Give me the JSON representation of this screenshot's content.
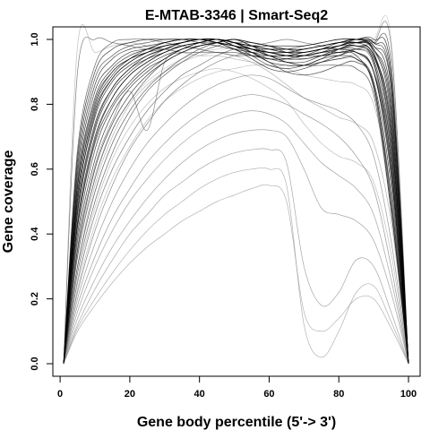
{
  "chart_data": {
    "type": "line",
    "title": "E-MTAB-3346 | Smart-Seq2",
    "xlabel": "Gene body percentile (5'-> 3')",
    "ylabel": "Gene coverage",
    "xlim": [
      0,
      100
    ],
    "ylim": [
      0,
      1.0
    ],
    "xticks": [
      0,
      20,
      40,
      60,
      80,
      100
    ],
    "yticks": [
      0.0,
      0.2,
      0.4,
      0.6,
      0.8,
      1.0
    ],
    "xtick_labels": [
      "0",
      "20",
      "40",
      "60",
      "80",
      "100"
    ],
    "ytick_labels": [
      "0.0",
      "0.2",
      "0.4",
      "0.6",
      "0.8",
      "1.0"
    ],
    "grid": false,
    "legend": "none",
    "x": [
      1,
      5,
      10,
      15,
      20,
      25,
      30,
      35,
      40,
      45,
      50,
      55,
      60,
      65,
      70,
      75,
      80,
      85,
      90,
      95,
      100
    ],
    "series": [
      {
        "color": "#000000",
        "values": [
          0.0,
          0.52,
          0.78,
          0.88,
          0.93,
          0.96,
          0.98,
          0.99,
          1.0,
          1.0,
          0.99,
          0.97,
          0.96,
          0.96,
          0.96,
          0.97,
          0.98,
          0.99,
          0.96,
          0.72,
          0.0
        ]
      },
      {
        "color": "#000000",
        "values": [
          0.0,
          0.46,
          0.72,
          0.84,
          0.9,
          0.94,
          0.97,
          0.99,
          1.0,
          0.99,
          0.98,
          0.96,
          0.94,
          0.93,
          0.93,
          0.95,
          0.97,
          0.98,
          0.93,
          0.62,
          0.0
        ]
      },
      {
        "color": "#000000",
        "values": [
          0.0,
          0.56,
          0.82,
          0.91,
          0.95,
          0.97,
          0.99,
          1.0,
          1.0,
          1.0,
          0.99,
          0.98,
          0.97,
          0.97,
          0.97,
          0.98,
          0.99,
          0.99,
          0.97,
          0.78,
          0.0
        ]
      },
      {
        "color": "#000000",
        "values": [
          0.0,
          0.42,
          0.68,
          0.8,
          0.87,
          0.92,
          0.95,
          0.97,
          0.99,
          1.0,
          0.99,
          0.97,
          0.95,
          0.94,
          0.94,
          0.95,
          0.96,
          0.96,
          0.9,
          0.58,
          0.0
        ]
      },
      {
        "color": "#000000",
        "values": [
          0.0,
          0.5,
          0.76,
          0.87,
          0.92,
          0.95,
          0.97,
          0.99,
          1.0,
          1.0,
          0.98,
          0.95,
          0.92,
          0.91,
          0.92,
          0.94,
          0.97,
          0.99,
          0.98,
          0.82,
          0.0
        ]
      },
      {
        "color": "#000000",
        "values": [
          0.0,
          0.38,
          0.63,
          0.77,
          0.85,
          0.9,
          0.94,
          0.97,
          0.99,
          1.0,
          0.99,
          0.97,
          0.95,
          0.93,
          0.92,
          0.93,
          0.94,
          0.94,
          0.87,
          0.55,
          0.0
        ]
      },
      {
        "color": "#000000",
        "values": [
          0.0,
          0.6,
          0.86,
          0.94,
          0.97,
          0.98,
          0.99,
          1.0,
          1.0,
          0.99,
          0.98,
          0.97,
          0.96,
          0.95,
          0.95,
          0.96,
          0.97,
          0.98,
          0.95,
          0.7,
          0.0
        ]
      },
      {
        "color": "#000000",
        "values": [
          0.0,
          0.48,
          0.74,
          0.85,
          0.91,
          0.94,
          0.96,
          0.98,
          0.99,
          1.0,
          0.99,
          0.98,
          0.97,
          0.96,
          0.96,
          0.97,
          0.98,
          1.0,
          0.99,
          0.88,
          0.0
        ]
      },
      {
        "color": "#000000",
        "values": [
          0.0,
          0.44,
          0.7,
          0.82,
          0.89,
          0.93,
          0.96,
          0.98,
          0.99,
          1.0,
          0.98,
          0.96,
          0.93,
          0.9,
          0.89,
          0.9,
          0.92,
          0.93,
          0.86,
          0.5,
          0.0
        ]
      },
      {
        "color": "#000000",
        "values": [
          0.0,
          0.54,
          0.8,
          0.9,
          0.94,
          0.96,
          0.98,
          0.99,
          1.0,
          1.0,
          0.99,
          0.98,
          0.98,
          0.98,
          0.98,
          0.99,
          1.0,
          1.0,
          0.98,
          0.85,
          0.0
        ]
      },
      {
        "color": "#000000",
        "values": [
          0.0,
          0.35,
          0.6,
          0.74,
          0.83,
          0.89,
          0.93,
          0.96,
          0.98,
          0.99,
          1.0,
          0.98,
          0.96,
          0.95,
          0.95,
          0.96,
          0.96,
          0.95,
          0.85,
          0.48,
          0.0
        ]
      },
      {
        "color": "#000000",
        "values": [
          0.0,
          0.64,
          0.9,
          0.97,
          0.99,
          1.0,
          1.0,
          1.0,
          0.99,
          0.98,
          0.97,
          0.96,
          0.95,
          0.95,
          0.96,
          0.97,
          0.98,
          0.99,
          0.97,
          0.76,
          0.0
        ]
      },
      {
        "color": "#000000",
        "values": [
          0.0,
          0.4,
          0.66,
          0.79,
          0.86,
          0.91,
          0.94,
          0.97,
          0.98,
          0.99,
          1.0,
          0.99,
          0.98,
          0.97,
          0.97,
          0.98,
          0.99,
          1.0,
          0.97,
          0.8,
          0.0
        ]
      },
      {
        "color": "#000000",
        "values": [
          0.0,
          0.58,
          0.84,
          0.92,
          0.96,
          0.97,
          0.98,
          0.99,
          1.0,
          0.99,
          0.97,
          0.94,
          0.91,
          0.9,
          0.91,
          0.93,
          0.95,
          0.97,
          0.94,
          0.66,
          0.0
        ]
      },
      {
        "color": "#000000",
        "values": [
          0.0,
          0.47,
          0.73,
          0.85,
          0.91,
          0.95,
          0.97,
          0.99,
          1.0,
          1.0,
          0.99,
          0.97,
          0.96,
          0.95,
          0.95,
          0.96,
          0.98,
          0.99,
          0.95,
          0.74,
          0.0
        ]
      },
      {
        "color": "#000000",
        "values": [
          0.0,
          0.52,
          0.79,
          0.89,
          0.94,
          0.97,
          0.99,
          1.0,
          1.0,
          0.99,
          0.97,
          0.95,
          0.94,
          0.94,
          0.95,
          0.97,
          0.99,
          1.0,
          1.0,
          0.9,
          0.0
        ]
      },
      {
        "color": "#000000",
        "values": [
          0.0,
          0.43,
          0.69,
          0.82,
          0.89,
          0.93,
          0.96,
          0.98,
          0.99,
          1.0,
          0.99,
          0.96,
          0.93,
          0.92,
          0.92,
          0.94,
          0.95,
          0.96,
          0.9,
          0.6,
          0.0
        ]
      },
      {
        "color": "#000000",
        "values": [
          0.0,
          0.5,
          0.77,
          0.88,
          0.93,
          0.96,
          0.98,
          0.99,
          1.0,
          1.0,
          0.99,
          0.98,
          0.97,
          0.96,
          0.97,
          0.98,
          0.99,
          0.99,
          0.96,
          0.68,
          0.0
        ]
      },
      {
        "color": "#1e1e1e",
        "values": [
          0.0,
          0.33,
          0.57,
          0.72,
          0.81,
          0.88,
          0.93,
          0.96,
          0.98,
          0.99,
          1.0,
          0.99,
          0.98,
          0.96,
          0.95,
          0.95,
          0.95,
          0.94,
          0.86,
          0.52,
          0.0
        ]
      },
      {
        "color": "#1e1e1e",
        "values": [
          0.0,
          0.62,
          0.88,
          0.95,
          0.98,
          0.99,
          1.0,
          1.0,
          1.0,
          0.99,
          0.98,
          0.97,
          0.97,
          0.97,
          0.98,
          0.99,
          1.0,
          1.0,
          0.99,
          0.86,
          0.0
        ]
      },
      {
        "color": "#2a2a2a",
        "values": [
          0.0,
          0.3,
          0.53,
          0.68,
          0.78,
          0.85,
          0.9,
          0.94,
          0.97,
          0.99,
          1.0,
          0.98,
          0.95,
          0.93,
          0.92,
          0.92,
          0.92,
          0.91,
          0.83,
          0.47,
          0.0
        ]
      },
      {
        "color": "#2a2a2a",
        "values": [
          0.0,
          0.55,
          0.81,
          0.9,
          0.94,
          0.96,
          0.97,
          0.98,
          0.99,
          0.99,
          0.98,
          0.97,
          0.96,
          0.96,
          0.97,
          0.98,
          0.99,
          1.0,
          0.99,
          0.93,
          0.0
        ]
      },
      {
        "color": "#3a3a3a",
        "values": [
          0.0,
          0.28,
          0.5,
          0.65,
          0.76,
          0.84,
          0.89,
          0.93,
          0.96,
          0.98,
          0.99,
          0.99,
          0.98,
          0.97,
          0.96,
          0.97,
          0.97,
          0.96,
          0.9,
          0.63,
          0.0
        ]
      },
      {
        "color": "#3a3a3a",
        "values": [
          0.0,
          0.66,
          0.92,
          0.99,
          1.0,
          1.0,
          0.99,
          0.98,
          0.97,
          0.96,
          0.96,
          0.95,
          0.95,
          0.95,
          0.96,
          0.97,
          0.98,
          0.98,
          0.95,
          0.72,
          0.0
        ]
      },
      {
        "color": "#555555",
        "values": [
          0.0,
          0.25,
          0.46,
          0.6,
          0.7,
          0.78,
          0.84,
          0.89,
          0.92,
          0.95,
          0.97,
          0.98,
          0.99,
          1.0,
          0.99,
          0.98,
          0.97,
          0.96,
          0.9,
          0.66,
          0.0
        ]
      },
      {
        "color": "#555555",
        "values": [
          0.0,
          0.9,
          1.0,
          0.99,
          0.98,
          0.97,
          0.97,
          0.96,
          0.96,
          0.96,
          0.95,
          0.95,
          0.94,
          0.94,
          0.95,
          0.96,
          0.97,
          0.97,
          0.93,
          0.64,
          0.0
        ]
      },
      {
        "color": "#666666",
        "values": [
          0.0,
          0.22,
          0.41,
          0.55,
          0.66,
          0.74,
          0.81,
          0.86,
          0.9,
          0.93,
          0.95,
          0.96,
          0.96,
          0.95,
          0.94,
          0.95,
          0.96,
          0.97,
          0.99,
          0.98,
          0.0
        ]
      },
      {
        "color": "#666666",
        "values": [
          0.0,
          0.36,
          0.61,
          0.75,
          0.84,
          0.72,
          0.93,
          0.96,
          0.98,
          0.99,
          0.98,
          0.97,
          0.96,
          0.95,
          0.95,
          0.96,
          0.97,
          0.97,
          0.92,
          0.6,
          0.0
        ]
      },
      {
        "color": "#777777",
        "values": [
          0.0,
          0.2,
          0.37,
          0.5,
          0.6,
          0.68,
          0.74,
          0.79,
          0.83,
          0.86,
          0.88,
          0.89,
          0.88,
          0.85,
          0.82,
          0.8,
          0.78,
          0.74,
          0.64,
          0.38,
          0.0
        ]
      },
      {
        "color": "#777777",
        "values": [
          0.0,
          0.18,
          0.33,
          0.45,
          0.54,
          0.62,
          0.68,
          0.73,
          0.77,
          0.8,
          0.82,
          0.83,
          0.82,
          0.8,
          0.77,
          0.74,
          0.7,
          0.64,
          0.54,
          0.3,
          0.0
        ]
      },
      {
        "color": "#888888",
        "values": [
          0.0,
          0.16,
          0.3,
          0.41,
          0.5,
          0.57,
          0.63,
          0.68,
          0.72,
          0.75,
          0.77,
          0.78,
          0.77,
          0.74,
          0.68,
          0.62,
          0.58,
          0.54,
          0.46,
          0.26,
          0.0
        ]
      },
      {
        "color": "#888888",
        "values": [
          0.0,
          0.14,
          0.26,
          0.36,
          0.44,
          0.51,
          0.57,
          0.62,
          0.66,
          0.69,
          0.71,
          0.72,
          0.72,
          0.7,
          0.6,
          0.48,
          0.46,
          0.44,
          0.38,
          0.22,
          0.0
        ]
      },
      {
        "color": "#888888",
        "values": [
          0.0,
          0.12,
          0.23,
          0.32,
          0.4,
          0.46,
          0.52,
          0.56,
          0.6,
          0.63,
          0.65,
          0.66,
          0.66,
          0.62,
          0.3,
          0.18,
          0.22,
          0.32,
          0.3,
          0.16,
          0.0
        ]
      },
      {
        "color": "#999999",
        "values": [
          0.0,
          0.11,
          0.2,
          0.28,
          0.35,
          0.41,
          0.46,
          0.5,
          0.54,
          0.57,
          0.59,
          0.6,
          0.6,
          0.55,
          0.12,
          0.02,
          0.1,
          0.22,
          0.24,
          0.13,
          0.0
        ]
      },
      {
        "color": "#999999",
        "values": [
          0.0,
          0.1,
          0.18,
          0.25,
          0.31,
          0.36,
          0.4,
          0.44,
          0.47,
          0.5,
          0.52,
          0.54,
          0.55,
          0.5,
          0.16,
          0.1,
          0.14,
          0.2,
          0.2,
          0.11,
          0.0
        ]
      },
      {
        "color": "#999999",
        "values": [
          0.0,
          0.3,
          0.55,
          0.7,
          0.8,
          0.86,
          0.9,
          0.93,
          0.95,
          0.96,
          0.95,
          0.93,
          0.9,
          0.86,
          0.82,
          0.79,
          0.76,
          0.74,
          0.68,
          0.44,
          0.0
        ]
      },
      {
        "color": "#aaaaaa",
        "values": [
          0.0,
          0.26,
          0.48,
          0.63,
          0.73,
          0.8,
          0.85,
          0.88,
          0.9,
          0.91,
          0.9,
          0.88,
          0.85,
          0.81,
          0.74,
          0.68,
          0.64,
          0.62,
          0.56,
          0.34,
          0.0
        ]
      },
      {
        "color": "#aaaaaa",
        "values": [
          0.0,
          0.98,
          0.96,
          0.98,
          0.99,
          0.98,
          0.97,
          0.96,
          0.95,
          0.95,
          0.94,
          0.93,
          0.92,
          0.92,
          0.92,
          0.93,
          0.94,
          0.95,
          0.9,
          0.58,
          0.0
        ]
      },
      {
        "color": "#aaaaaa",
        "values": [
          0.0,
          0.23,
          0.43,
          0.57,
          0.67,
          0.75,
          0.81,
          0.85,
          0.88,
          0.9,
          0.91,
          0.92,
          0.92,
          0.91,
          0.89,
          0.88,
          0.87,
          0.86,
          0.8,
          0.52,
          0.0
        ]
      },
      {
        "color": "#bbbbbb",
        "values": [
          0.0,
          0.34,
          0.58,
          0.72,
          0.81,
          0.87,
          0.91,
          0.94,
          0.96,
          0.97,
          0.97,
          0.96,
          0.95,
          0.94,
          0.94,
          0.95,
          0.96,
          0.99,
          1.0,
          1.0,
          0.0
        ]
      }
    ]
  }
}
